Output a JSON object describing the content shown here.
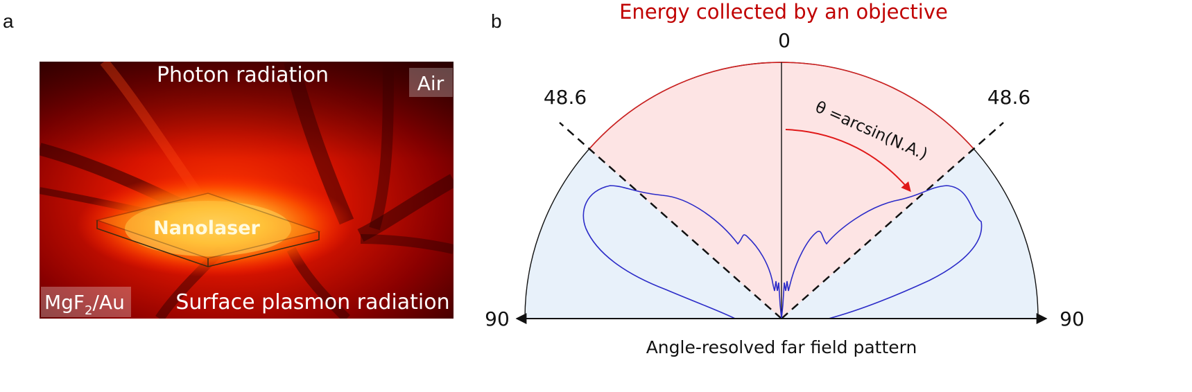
{
  "panel_a": {
    "letter": "a",
    "labels": {
      "photon": "Photon radiation",
      "air": "Air",
      "nanolaser": "Nanolaser",
      "substrate_main": "MgF",
      "substrate_sub": "2",
      "substrate_rest": "/Au",
      "plasmon": "Surface plasmon radiation"
    },
    "colors": {
      "dark": "#3a0000",
      "red": "#d81a00",
      "hot": "#ffe07a"
    }
  },
  "panel_b": {
    "letter": "b",
    "title": "Energy collected by an objective",
    "top_angle": "0",
    "left_cone": "48.6",
    "right_cone": "48.6",
    "left_end": "90",
    "right_end": "90",
    "formula": "θ =arcsin(N.A.)",
    "caption": "Angle-resolved far field pattern",
    "colors": {
      "cone": "#fde4e4",
      "outer": "#e8f1fa",
      "pattern": "#2b2bc8",
      "arrow": "#e01818",
      "title": "#c00000"
    }
  }
}
